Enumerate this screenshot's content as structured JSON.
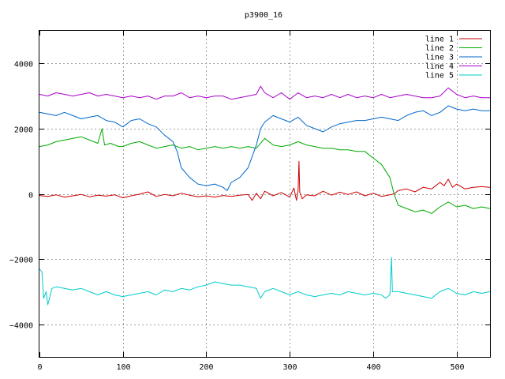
{
  "chart_data": {
    "type": "line",
    "title": "p3900_16",
    "xlabel": "",
    "ylabel": "",
    "xlim": [
      0,
      540
    ],
    "ylim": [
      -5000,
      5000
    ],
    "x_ticks": [
      0,
      100,
      200,
      300,
      400,
      500
    ],
    "y_ticks": [
      -4000,
      -2000,
      0,
      2000,
      4000
    ],
    "grid": true,
    "legend_position": "top-right",
    "series": [
      {
        "name": "line 1",
        "color": "#cc0000",
        "points": [
          [
            0,
            -50
          ],
          [
            10,
            -80
          ],
          [
            20,
            -30
          ],
          [
            30,
            -100
          ],
          [
            40,
            -60
          ],
          [
            50,
            -20
          ],
          [
            60,
            -90
          ],
          [
            70,
            -40
          ],
          [
            80,
            -70
          ],
          [
            90,
            -30
          ],
          [
            100,
            -120
          ],
          [
            110,
            -60
          ],
          [
            120,
            -10
          ],
          [
            130,
            60
          ],
          [
            140,
            -80
          ],
          [
            150,
            -20
          ],
          [
            160,
            -60
          ],
          [
            170,
            20
          ],
          [
            180,
            -40
          ],
          [
            190,
            -90
          ],
          [
            200,
            -60
          ],
          [
            210,
            -100
          ],
          [
            220,
            -50
          ],
          [
            230,
            -80
          ],
          [
            240,
            -40
          ],
          [
            250,
            -20
          ],
          [
            255,
            -200
          ],
          [
            260,
            20
          ],
          [
            265,
            -150
          ],
          [
            270,
            80
          ],
          [
            280,
            -60
          ],
          [
            290,
            40
          ],
          [
            300,
            -100
          ],
          [
            305,
            180
          ],
          [
            308,
            -200
          ],
          [
            310,
            100
          ],
          [
            311,
            1000
          ],
          [
            312,
            50
          ],
          [
            315,
            -150
          ],
          [
            320,
            -30
          ],
          [
            330,
            -60
          ],
          [
            340,
            80
          ],
          [
            350,
            -40
          ],
          [
            360,
            50
          ],
          [
            370,
            -20
          ],
          [
            380,
            60
          ],
          [
            390,
            -60
          ],
          [
            400,
            20
          ],
          [
            410,
            -80
          ],
          [
            420,
            -30
          ],
          [
            425,
            0
          ],
          [
            430,
            100
          ],
          [
            440,
            150
          ],
          [
            450,
            60
          ],
          [
            460,
            200
          ],
          [
            470,
            150
          ],
          [
            480,
            350
          ],
          [
            485,
            250
          ],
          [
            490,
            450
          ],
          [
            495,
            200
          ],
          [
            500,
            300
          ],
          [
            510,
            150
          ],
          [
            520,
            200
          ],
          [
            530,
            220
          ],
          [
            540,
            200
          ]
        ]
      },
      {
        "name": "line 2",
        "color": "#00aa00",
        "points": [
          [
            0,
            1450
          ],
          [
            10,
            1500
          ],
          [
            20,
            1600
          ],
          [
            30,
            1650
          ],
          [
            40,
            1700
          ],
          [
            50,
            1750
          ],
          [
            60,
            1650
          ],
          [
            70,
            1550
          ],
          [
            75,
            2000
          ],
          [
            78,
            1500
          ],
          [
            85,
            1550
          ],
          [
            95,
            1450
          ],
          [
            100,
            1450
          ],
          [
            110,
            1550
          ],
          [
            120,
            1600
          ],
          [
            130,
            1500
          ],
          [
            140,
            1400
          ],
          [
            150,
            1450
          ],
          [
            160,
            1500
          ],
          [
            170,
            1400
          ],
          [
            180,
            1450
          ],
          [
            190,
            1350
          ],
          [
            200,
            1400
          ],
          [
            210,
            1450
          ],
          [
            220,
            1400
          ],
          [
            230,
            1450
          ],
          [
            240,
            1400
          ],
          [
            250,
            1450
          ],
          [
            260,
            1400
          ],
          [
            270,
            1700
          ],
          [
            280,
            1500
          ],
          [
            290,
            1450
          ],
          [
            300,
            1500
          ],
          [
            310,
            1600
          ],
          [
            320,
            1500
          ],
          [
            330,
            1450
          ],
          [
            340,
            1400
          ],
          [
            350,
            1400
          ],
          [
            360,
            1350
          ],
          [
            370,
            1350
          ],
          [
            380,
            1300
          ],
          [
            390,
            1300
          ],
          [
            400,
            1100
          ],
          [
            410,
            900
          ],
          [
            420,
            500
          ],
          [
            425,
            0
          ],
          [
            430,
            -350
          ],
          [
            440,
            -450
          ],
          [
            450,
            -550
          ],
          [
            460,
            -500
          ],
          [
            470,
            -600
          ],
          [
            480,
            -400
          ],
          [
            490,
            -250
          ],
          [
            500,
            -400
          ],
          [
            510,
            -350
          ],
          [
            520,
            -450
          ],
          [
            530,
            -400
          ],
          [
            540,
            -450
          ]
        ]
      },
      {
        "name": "line 3",
        "color": "#0066cc",
        "points": [
          [
            0,
            2500
          ],
          [
            10,
            2450
          ],
          [
            20,
            2400
          ],
          [
            30,
            2500
          ],
          [
            40,
            2400
          ],
          [
            50,
            2300
          ],
          [
            60,
            2350
          ],
          [
            70,
            2400
          ],
          [
            80,
            2250
          ],
          [
            90,
            2200
          ],
          [
            100,
            2050
          ],
          [
            110,
            2250
          ],
          [
            120,
            2300
          ],
          [
            130,
            2150
          ],
          [
            140,
            2050
          ],
          [
            150,
            1800
          ],
          [
            160,
            1600
          ],
          [
            165,
            1300
          ],
          [
            170,
            800
          ],
          [
            180,
            500
          ],
          [
            190,
            300
          ],
          [
            200,
            250
          ],
          [
            210,
            300
          ],
          [
            220,
            200
          ],
          [
            225,
            100
          ],
          [
            230,
            350
          ],
          [
            240,
            500
          ],
          [
            250,
            800
          ],
          [
            260,
            1500
          ],
          [
            265,
            2000
          ],
          [
            270,
            2200
          ],
          [
            280,
            2400
          ],
          [
            290,
            2300
          ],
          [
            300,
            2200
          ],
          [
            310,
            2350
          ],
          [
            320,
            2100
          ],
          [
            330,
            2000
          ],
          [
            340,
            1900
          ],
          [
            350,
            2050
          ],
          [
            360,
            2150
          ],
          [
            370,
            2200
          ],
          [
            380,
            2250
          ],
          [
            390,
            2250
          ],
          [
            400,
            2300
          ],
          [
            410,
            2350
          ],
          [
            420,
            2300
          ],
          [
            430,
            2250
          ],
          [
            440,
            2400
          ],
          [
            450,
            2500
          ],
          [
            460,
            2550
          ],
          [
            470,
            2400
          ],
          [
            480,
            2500
          ],
          [
            490,
            2700
          ],
          [
            500,
            2600
          ],
          [
            510,
            2550
          ],
          [
            520,
            2600
          ],
          [
            530,
            2550
          ],
          [
            540,
            2550
          ]
        ]
      },
      {
        "name": "line 4",
        "color": "#aa00cc",
        "points": [
          [
            0,
            3050
          ],
          [
            10,
            3000
          ],
          [
            20,
            3100
          ],
          [
            30,
            3050
          ],
          [
            40,
            3000
          ],
          [
            50,
            3050
          ],
          [
            60,
            3100
          ],
          [
            70,
            3000
          ],
          [
            80,
            3050
          ],
          [
            90,
            3000
          ],
          [
            100,
            2950
          ],
          [
            110,
            3000
          ],
          [
            120,
            2950
          ],
          [
            130,
            3000
          ],
          [
            140,
            2900
          ],
          [
            150,
            3000
          ],
          [
            160,
            3000
          ],
          [
            170,
            3100
          ],
          [
            180,
            2950
          ],
          [
            190,
            3000
          ],
          [
            200,
            2950
          ],
          [
            210,
            3000
          ],
          [
            220,
            3000
          ],
          [
            230,
            2900
          ],
          [
            240,
            2950
          ],
          [
            250,
            3000
          ],
          [
            260,
            3050
          ],
          [
            265,
            3300
          ],
          [
            270,
            3100
          ],
          [
            280,
            2950
          ],
          [
            290,
            3100
          ],
          [
            300,
            2900
          ],
          [
            310,
            3100
          ],
          [
            320,
            2950
          ],
          [
            330,
            3000
          ],
          [
            340,
            2950
          ],
          [
            350,
            3050
          ],
          [
            360,
            2950
          ],
          [
            370,
            3050
          ],
          [
            380,
            2950
          ],
          [
            390,
            3000
          ],
          [
            400,
            2950
          ],
          [
            410,
            3050
          ],
          [
            420,
            2950
          ],
          [
            430,
            3000
          ],
          [
            440,
            3050
          ],
          [
            450,
            3000
          ],
          [
            460,
            2950
          ],
          [
            470,
            2950
          ],
          [
            480,
            3000
          ],
          [
            490,
            3250
          ],
          [
            500,
            3050
          ],
          [
            510,
            2950
          ],
          [
            520,
            3000
          ],
          [
            530,
            2950
          ],
          [
            540,
            2950
          ]
        ]
      },
      {
        "name": "line 5",
        "color": "#00cccc",
        "points": [
          [
            0,
            -2300
          ],
          [
            3,
            -2400
          ],
          [
            5,
            -3200
          ],
          [
            8,
            -3000
          ],
          [
            10,
            -3400
          ],
          [
            15,
            -2900
          ],
          [
            20,
            -2850
          ],
          [
            30,
            -2900
          ],
          [
            40,
            -2950
          ],
          [
            50,
            -2900
          ],
          [
            60,
            -3000
          ],
          [
            70,
            -3100
          ],
          [
            80,
            -3000
          ],
          [
            90,
            -3100
          ],
          [
            100,
            -3150
          ],
          [
            110,
            -3100
          ],
          [
            120,
            -3050
          ],
          [
            130,
            -3000
          ],
          [
            140,
            -3100
          ],
          [
            150,
            -2950
          ],
          [
            160,
            -3000
          ],
          [
            170,
            -2900
          ],
          [
            180,
            -2950
          ],
          [
            190,
            -2850
          ],
          [
            200,
            -2800
          ],
          [
            210,
            -2700
          ],
          [
            220,
            -2750
          ],
          [
            230,
            -2800
          ],
          [
            240,
            -2800
          ],
          [
            250,
            -2850
          ],
          [
            260,
            -2900
          ],
          [
            265,
            -3200
          ],
          [
            270,
            -3000
          ],
          [
            280,
            -2900
          ],
          [
            290,
            -3000
          ],
          [
            300,
            -3100
          ],
          [
            310,
            -3000
          ],
          [
            320,
            -3100
          ],
          [
            330,
            -3150
          ],
          [
            340,
            -3100
          ],
          [
            350,
            -3050
          ],
          [
            360,
            -3100
          ],
          [
            370,
            -3000
          ],
          [
            380,
            -3050
          ],
          [
            390,
            -3100
          ],
          [
            400,
            -3050
          ],
          [
            410,
            -3100
          ],
          [
            415,
            -3200
          ],
          [
            420,
            -3100
          ],
          [
            422,
            -1950
          ],
          [
            423,
            -3000
          ],
          [
            430,
            -3000
          ],
          [
            440,
            -3050
          ],
          [
            450,
            -3100
          ],
          [
            460,
            -3150
          ],
          [
            470,
            -3200
          ],
          [
            480,
            -3000
          ],
          [
            490,
            -2900
          ],
          [
            500,
            -3050
          ],
          [
            510,
            -3100
          ],
          [
            520,
            -3000
          ],
          [
            530,
            -3050
          ],
          [
            540,
            -3000
          ]
        ]
      }
    ]
  }
}
